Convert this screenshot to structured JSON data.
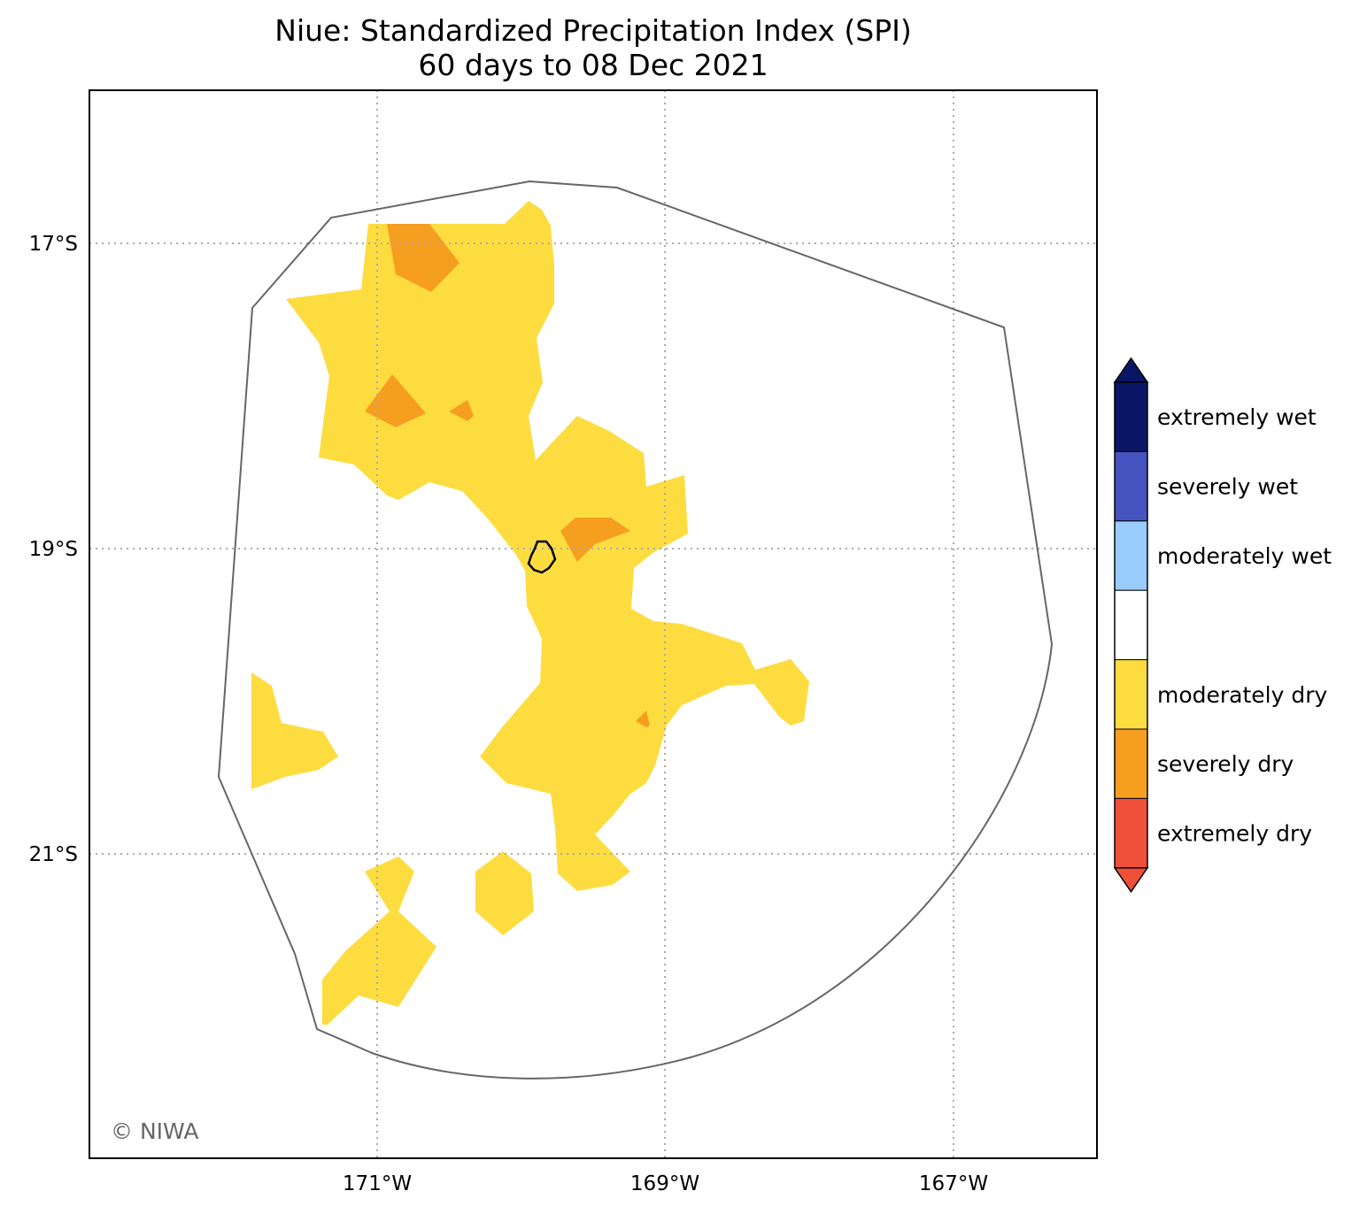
{
  "title": {
    "line1": "Niue: Standardized Precipitation Index (SPI)",
    "line2": "60 days to 08 Dec 2021"
  },
  "map": {
    "lat_ticks": [
      "17°S",
      "19°S",
      "21°S"
    ],
    "lon_ticks": [
      "171°W",
      "169°W",
      "167°W"
    ],
    "credit": "© NIWA",
    "gridlines": true
  },
  "legend": {
    "classes": [
      {
        "label": "extremely wet",
        "color": "#0b1766"
      },
      {
        "label": "severely wet",
        "color": "#4654c0"
      },
      {
        "label": "moderately wet",
        "color": "#99cbfc"
      },
      {
        "label": "",
        "color": "#ffffff"
      },
      {
        "label": "moderately dry",
        "color": "#fddc40"
      },
      {
        "label": "severely dry",
        "color": "#f59e20"
      },
      {
        "label": "extremely dry",
        "color": "#f0503a"
      }
    ],
    "extend_top_color": "#0b1766",
    "extend_bottom_color": "#f0503a"
  },
  "colors": {
    "moderately_dry": "#fddc40",
    "severely_dry": "#f59e20",
    "eez_outline": "#666666",
    "island_outline": "#000000"
  }
}
